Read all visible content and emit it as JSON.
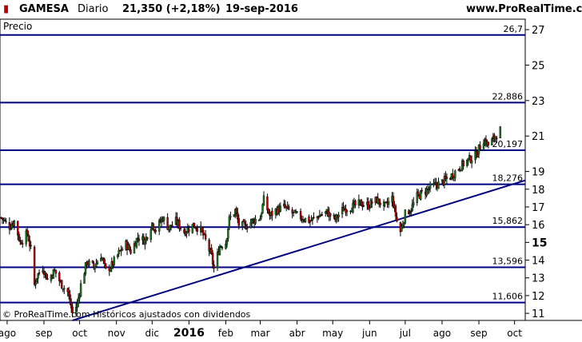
{
  "header": {
    "ticker": "GAMESA",
    "period": "Diario",
    "quote": "21,350 (+2,18%)",
    "date": "19-sep-2016",
    "site": "www.ProRealTime.com"
  },
  "panel_label": "Precio",
  "footer_note": "© ProRealTime.com  Históricos ajustados con dividendos",
  "colors": {
    "up": "#1f7a1f",
    "down": "#c00000",
    "lines": "#000080",
    "grid": "#000000"
  },
  "chart_data": {
    "type": "candlestick",
    "title": "",
    "ylim": [
      10.6,
      27.5
    ],
    "y_ticks": [
      {
        "value": 27,
        "label": "27"
      },
      {
        "value": 25,
        "label": "25"
      },
      {
        "value": 23,
        "label": "23"
      },
      {
        "value": 21,
        "label": "21"
      },
      {
        "value": 19,
        "label": "19"
      },
      {
        "value": 18,
        "label": "18"
      },
      {
        "value": 17,
        "label": "17"
      },
      {
        "value": 16,
        "label": "16"
      },
      {
        "value": 15,
        "label": "15",
        "bold": true
      },
      {
        "value": 14,
        "label": "14"
      },
      {
        "value": 13,
        "label": "13"
      },
      {
        "value": 12,
        "label": "12"
      },
      {
        "value": 11,
        "label": "11"
      }
    ],
    "x_ticks": [
      {
        "date": "2015-08-01",
        "label": "ago"
      },
      {
        "date": "2015-09-01",
        "label": "sep"
      },
      {
        "date": "2015-10-01",
        "label": "oct"
      },
      {
        "date": "2015-11-01",
        "label": "nov"
      },
      {
        "date": "2015-12-01",
        "label": "dic"
      },
      {
        "date": "2016-01-01",
        "label": "2016",
        "bold": true
      },
      {
        "date": "2016-02-01",
        "label": "feb"
      },
      {
        "date": "2016-03-01",
        "label": "mar"
      },
      {
        "date": "2016-04-01",
        "label": "abr"
      },
      {
        "date": "2016-05-01",
        "label": "may"
      },
      {
        "date": "2016-06-01",
        "label": "jun"
      },
      {
        "date": "2016-07-01",
        "label": "jul"
      },
      {
        "date": "2016-08-01",
        "label": "ago"
      },
      {
        "date": "2016-09-01",
        "label": "sep"
      },
      {
        "date": "2016-10-01",
        "label": "oct"
      }
    ],
    "x_range": [
      "2015-07-26",
      "2016-10-10"
    ],
    "horizontal_levels": [
      {
        "value": 26.7,
        "label": "26,7"
      },
      {
        "value": 22.886,
        "label": "22,886"
      },
      {
        "value": 20.197,
        "label": "20,197"
      },
      {
        "value": 18.276,
        "label": "18,276"
      },
      {
        "value": 15.862,
        "label": "15,862"
      },
      {
        "value": 13.596,
        "label": "13,596"
      },
      {
        "value": 11.606,
        "label": "11,606"
      }
    ],
    "trendline": {
      "start": [
        "2015-09-25",
        10.6
      ],
      "end": [
        "2016-10-10",
        18.5
      ]
    },
    "last_close": {
      "date": "2016-09-19",
      "value": 21.35
    },
    "price_path": [
      [
        "2015-07-27",
        16.4
      ],
      [
        "2015-08-03",
        15.9
      ],
      [
        "2015-08-07",
        16.2
      ],
      [
        "2015-08-12",
        15.0
      ],
      [
        "2015-08-18",
        15.5
      ],
      [
        "2015-08-21",
        14.6
      ],
      [
        "2015-08-24",
        12.6
      ],
      [
        "2015-08-26",
        13.1
      ],
      [
        "2015-08-31",
        13.6
      ],
      [
        "2015-09-04",
        12.9
      ],
      [
        "2015-09-10",
        13.4
      ],
      [
        "2015-09-15",
        12.7
      ],
      [
        "2015-09-21",
        12.2
      ],
      [
        "2015-09-25",
        11.0
      ],
      [
        "2015-09-29",
        11.5
      ],
      [
        "2015-10-02",
        12.6
      ],
      [
        "2015-10-07",
        13.9
      ],
      [
        "2015-10-13",
        13.6
      ],
      [
        "2015-10-19",
        14.3
      ],
      [
        "2015-10-23",
        13.4
      ],
      [
        "2015-10-28",
        13.7
      ],
      [
        "2015-11-03",
        14.4
      ],
      [
        "2015-11-09",
        14.9
      ],
      [
        "2015-11-13",
        14.5
      ],
      [
        "2015-11-19",
        15.3
      ],
      [
        "2015-11-25",
        15.1
      ],
      [
        "2015-12-01",
        16.1
      ],
      [
        "2015-12-04",
        15.7
      ],
      [
        "2015-12-10",
        16.4
      ],
      [
        "2015-12-15",
        15.8
      ],
      [
        "2015-12-21",
        16.2
      ],
      [
        "2015-12-28",
        15.6
      ],
      [
        "2016-01-05",
        16.0
      ],
      [
        "2016-01-11",
        15.7
      ],
      [
        "2016-01-15",
        15.1
      ],
      [
        "2016-01-20",
        14.2
      ],
      [
        "2016-01-22",
        13.5
      ],
      [
        "2016-01-27",
        14.8
      ],
      [
        "2016-02-01",
        15.0
      ],
      [
        "2016-02-04",
        16.3
      ],
      [
        "2016-02-09",
        16.8
      ],
      [
        "2016-02-12",
        16.0
      ],
      [
        "2016-02-17",
        15.9
      ],
      [
        "2016-02-23",
        16.2
      ],
      [
        "2016-03-01",
        16.4
      ],
      [
        "2016-03-04",
        17.4
      ],
      [
        "2016-03-09",
        16.5
      ],
      [
        "2016-03-14",
        16.8
      ],
      [
        "2016-03-21",
        17.0
      ],
      [
        "2016-03-29",
        16.6
      ],
      [
        "2016-04-05",
        16.4
      ],
      [
        "2016-04-12",
        16.2
      ],
      [
        "2016-04-19",
        16.5
      ],
      [
        "2016-04-26",
        16.7
      ],
      [
        "2016-05-03",
        16.3
      ],
      [
        "2016-05-10",
        16.9
      ],
      [
        "2016-05-17",
        17.0
      ],
      [
        "2016-05-24",
        17.2
      ],
      [
        "2016-05-31",
        17.1
      ],
      [
        "2016-06-07",
        17.4
      ],
      [
        "2016-06-14",
        17.0
      ],
      [
        "2016-06-20",
        17.5
      ],
      [
        "2016-06-24",
        16.2
      ],
      [
        "2016-06-27",
        15.6
      ],
      [
        "2016-07-01",
        16.6
      ],
      [
        "2016-07-06",
        16.9
      ],
      [
        "2016-07-11",
        17.6
      ],
      [
        "2016-07-18",
        17.9
      ],
      [
        "2016-07-25",
        18.2
      ],
      [
        "2016-08-01",
        18.4
      ],
      [
        "2016-08-08",
        18.7
      ],
      [
        "2016-08-15",
        19.2
      ],
      [
        "2016-08-22",
        19.6
      ],
      [
        "2016-08-29",
        19.9
      ],
      [
        "2016-09-05",
        20.8
      ],
      [
        "2016-09-09",
        20.5
      ],
      [
        "2016-09-14",
        20.9
      ],
      [
        "2016-09-19",
        21.35
      ]
    ]
  }
}
